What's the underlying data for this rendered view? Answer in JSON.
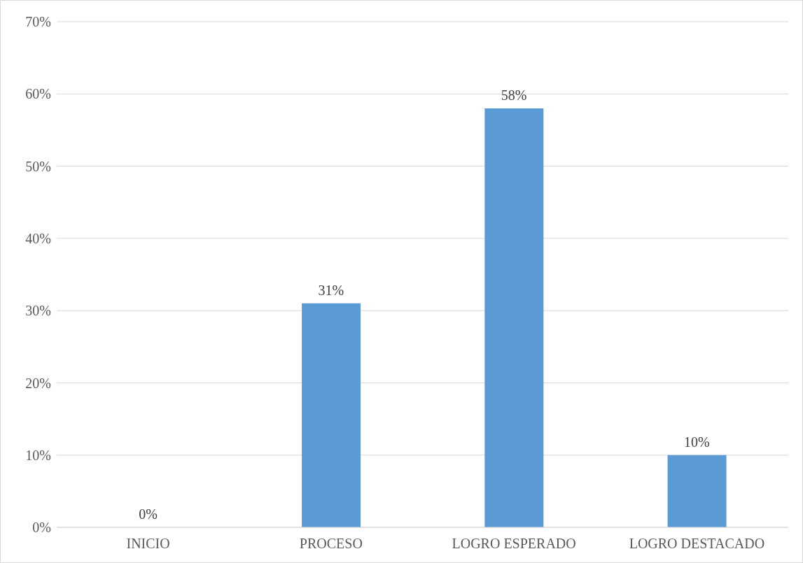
{
  "chart_data": {
    "type": "bar",
    "categories": [
      "INICIO",
      "PROCESO",
      "LOGRO ESPERADO",
      "LOGRO DESTACADO"
    ],
    "values": [
      0,
      31,
      58,
      10
    ],
    "color": "#5b9bd5",
    "ylim": [
      0,
      70
    ],
    "yticks": [
      {
        "value": 0,
        "label": "0%"
      },
      {
        "value": 10,
        "label": "10%"
      },
      {
        "value": 20,
        "label": "20%"
      },
      {
        "value": 30,
        "label": "30%"
      },
      {
        "value": 40,
        "label": "40%"
      },
      {
        "value": 50,
        "label": "50%"
      },
      {
        "value": 60,
        "label": "60%"
      },
      {
        "value": 70,
        "label": "70%"
      }
    ],
    "value_labels": [
      "0%",
      "31%",
      "58%",
      "10%"
    ],
    "grid": "y"
  }
}
